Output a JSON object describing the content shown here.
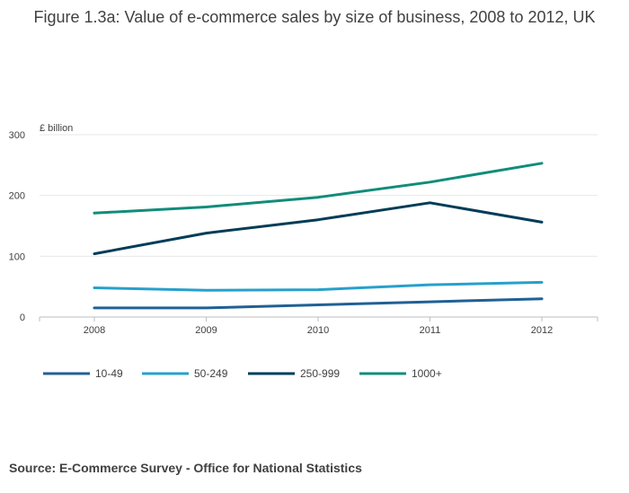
{
  "title": "Figure 1.3a: Value of e-commerce sales by size of business, 2008 to 2012, UK",
  "source": "Source: E-Commerce Survey - Office for National Statistics",
  "chart_data": {
    "type": "line",
    "title": "Figure 1.3a: Value of e-commerce sales by size of business, 2008 to 2012, UK",
    "xlabel": "",
    "ylabel": "£ billion",
    "categories": [
      "2008",
      "2009",
      "2010",
      "2011",
      "2012"
    ],
    "ylim": [
      0,
      300
    ],
    "yticks": [
      0,
      100,
      200,
      300
    ],
    "grid": true,
    "legend_position": "bottom-left",
    "series": [
      {
        "name": "10-49",
        "color": "#206095",
        "values": [
          15,
          15,
          20,
          25,
          30
        ]
      },
      {
        "name": "50-249",
        "color": "#27a0cc",
        "values": [
          48,
          44,
          45,
          53,
          57
        ]
      },
      {
        "name": "250-999",
        "color": "#003c57",
        "values": [
          104,
          138,
          160,
          188,
          156
        ]
      },
      {
        "name": "1000+",
        "color": "#118c7b",
        "values": [
          171,
          181,
          197,
          222,
          253
        ]
      }
    ]
  }
}
